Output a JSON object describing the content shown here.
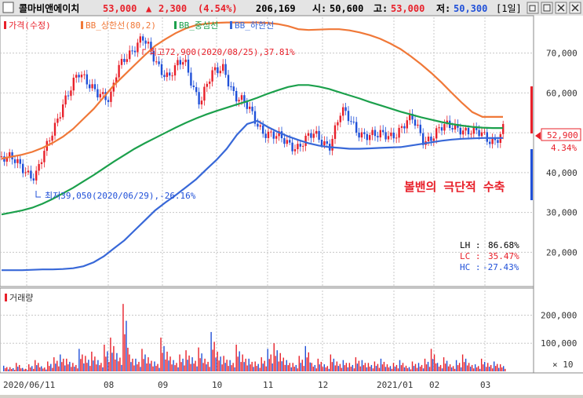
{
  "header": {
    "stock_name": "콜마비앤에이치",
    "price": "53,000",
    "change_arrow": "▲",
    "change": "2,300",
    "change_pct": "(4.54%)",
    "volume": "206,169",
    "open_label": "시:",
    "open": "50,600",
    "high_label": "고:",
    "high": "53,000",
    "low_label": "저:",
    "low": "50,300",
    "period": "[1일]"
  },
  "legend": {
    "price": "가격(수정)",
    "bb_upper": "BB_상한선(80,2)",
    "bb_mid": "BB_중심선",
    "bb_lower": "BB_하한선"
  },
  "annotations": {
    "high_note": "최고72,900(2020/08/25),37.81%",
    "low_note": "최저39,050(2020/06/29),-26.16%",
    "band_note": "볼밴의 극단적 수축",
    "current_price": "52,900",
    "current_pct": "4.34%"
  },
  "stats": {
    "lh_label": "LH :",
    "lh": "86.68%",
    "lc_label": "LC :",
    "lc": "35.47%",
    "hc_label": "HC :",
    "hc": "-27.43%"
  },
  "volume_panel": {
    "title": "거래량",
    "multiplier": "× 10"
  },
  "colors": {
    "up": "#e8202a",
    "down": "#2050d8",
    "bb_upper": "#f07838",
    "bb_mid": "#1ca04c",
    "bb_lower": "#3868d8",
    "header_price": "#e8202a",
    "note_red": "#e8202a"
  },
  "chart_data": [
    {
      "type": "line",
      "x_ticks": [
        "2020/06/11",
        "08",
        "09",
        "10",
        "11",
        "12",
        "2021/01",
        "02",
        "03"
      ],
      "y_ticks": [
        20000,
        30000,
        40000,
        50000,
        60000,
        70000
      ],
      "ylim": [
        12000,
        79000
      ],
      "series": [
        {
          "name": "BB_상한선(80,2)",
          "values": [
            43500,
            44000,
            44500,
            45200,
            46200,
            47500,
            49000,
            51000,
            53500,
            56000,
            59000,
            62000,
            64500,
            67000,
            69500,
            71800,
            73500,
            75000,
            76200,
            77000,
            77400,
            77600,
            77700,
            77700,
            77700,
            77700,
            77600,
            77300,
            76800,
            76000,
            75800,
            75900,
            76000,
            76000,
            75700,
            75200,
            74500,
            73600,
            72400,
            71000,
            69200,
            67200,
            65000,
            62600,
            60000,
            57500,
            55200,
            54000,
            54000,
            54000
          ]
        },
        {
          "name": "BB_중심선",
          "values": [
            29500,
            30000,
            30500,
            31200,
            32200,
            33400,
            34800,
            36200,
            37800,
            39400,
            41100,
            42800,
            44400,
            46000,
            47400,
            48700,
            50000,
            51300,
            52500,
            53600,
            54600,
            55500,
            56300,
            57100,
            57900,
            58800,
            59800,
            60700,
            61500,
            62000,
            62000,
            61600,
            61000,
            60200,
            59400,
            58600,
            57700,
            56900,
            56100,
            55300,
            54600,
            53900,
            53300,
            52700,
            52200,
            51800,
            51500,
            51300,
            51200,
            51200
          ]
        },
        {
          "name": "BB_하한선",
          "values": [
            15500,
            15500,
            15500,
            15600,
            15700,
            15700,
            15800,
            16000,
            16500,
            17500,
            19000,
            21000,
            23000,
            25500,
            28000,
            30500,
            32500,
            34300,
            36300,
            38300,
            40800,
            43200,
            46000,
            49500,
            52200,
            53000,
            51500,
            50200,
            49100,
            48200,
            47400,
            46800,
            46400,
            46200,
            46000,
            46000,
            46100,
            46200,
            46300,
            46400,
            46800,
            47200,
            47600,
            48000,
            48300,
            48500,
            48600,
            48700,
            48700,
            48700
          ]
        }
      ]
    },
    {
      "type": "bar",
      "ylim": [
        0,
        260000
      ],
      "y_ticks": [
        100000,
        200000
      ],
      "series": [
        {
          "name": "거래량",
          "values": [
            20000,
            15000,
            30000,
            12000,
            25000,
            40000,
            18000,
            35000,
            50000,
            60000,
            45000,
            30000,
            80000,
            55000,
            70000,
            40000,
            95000,
            120000,
            65000,
            240000,
            60000,
            45000,
            80000,
            50000,
            35000,
            120000,
            70000,
            40000,
            60000,
            75000,
            50000,
            85000,
            45000,
            140000,
            70000,
            55000,
            40000,
            95000,
            60000,
            45000,
            35000,
            50000,
            80000,
            100000,
            65000,
            40000,
            30000,
            55000,
            90000,
            30000,
            45000,
            25000,
            60000,
            35000,
            40000,
            30000,
            50000,
            40000,
            30000,
            35000,
            45000,
            25000,
            30000,
            40000,
            20000,
            35000,
            30000,
            45000,
            80000,
            30000,
            50000,
            25000,
            40000,
            60000,
            30000,
            25000,
            45000,
            30000,
            35000,
            25000
          ]
        }
      ]
    }
  ]
}
